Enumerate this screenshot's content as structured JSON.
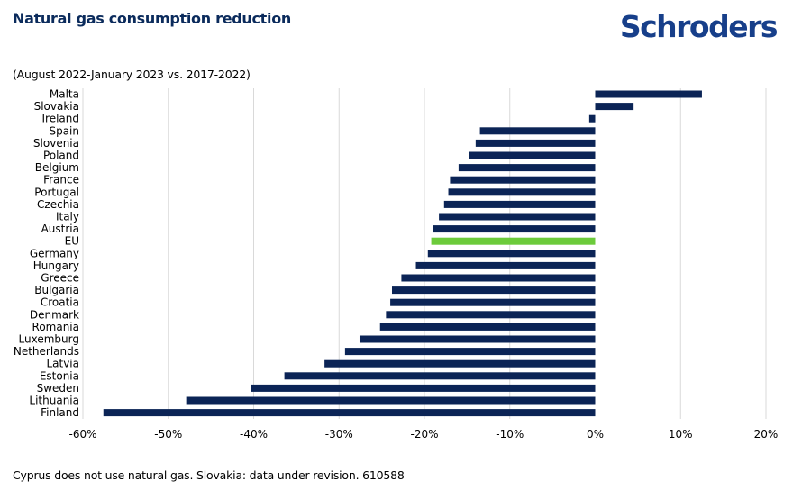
{
  "header": {
    "title": "Natural gas consumption reduction",
    "logo_text": "Schroders",
    "subtitle": "(August 2022-January 2023 vs. 2017-2022)"
  },
  "footer": {
    "note": "Cyprus does not use natural gas. Slovakia: data under revision. 610588"
  },
  "colors": {
    "bar": "#0b2456",
    "highlight": "#6ccb3b",
    "gridline": "#d9d9d9",
    "title": "#0b2b5c",
    "logo": "#173f8a"
  },
  "chart_data": {
    "type": "bar",
    "orientation": "horizontal",
    "categories": [
      "Malta",
      "Slovakia",
      "Ireland",
      "Spain",
      "Slovenia",
      "Poland",
      "Belgium",
      "France",
      "Portugal",
      "Czechia",
      "Italy",
      "Austria",
      "EU",
      "Germany",
      "Hungary",
      "Greece",
      "Bulgaria",
      "Croatia",
      "Denmark",
      "Romania",
      "Luxemburg",
      "Netherlands",
      "Latvia",
      "Estonia",
      "Sweden",
      "Lithuania",
      "Finland"
    ],
    "values": [
      12.5,
      4.5,
      -0.7,
      -13.5,
      -14,
      -14.8,
      -16,
      -17,
      -17.2,
      -17.7,
      -18.3,
      -19,
      -19.2,
      -19.6,
      -21,
      -22.7,
      -23.8,
      -24,
      -24.5,
      -25.2,
      -27.6,
      -29.3,
      -31.7,
      -36.4,
      -40.3,
      -47.9,
      -57.6
    ],
    "highlight_category": "EU",
    "xlim": [
      -60,
      20
    ],
    "x_ticks": [
      -60,
      -50,
      -40,
      -30,
      -20,
      -10,
      0,
      10,
      20
    ],
    "x_tick_labels": [
      "-60%",
      "-50%",
      "-40%",
      "-30%",
      "-20%",
      "-10%",
      "0%",
      "10%",
      "20%"
    ],
    "grid": true
  }
}
